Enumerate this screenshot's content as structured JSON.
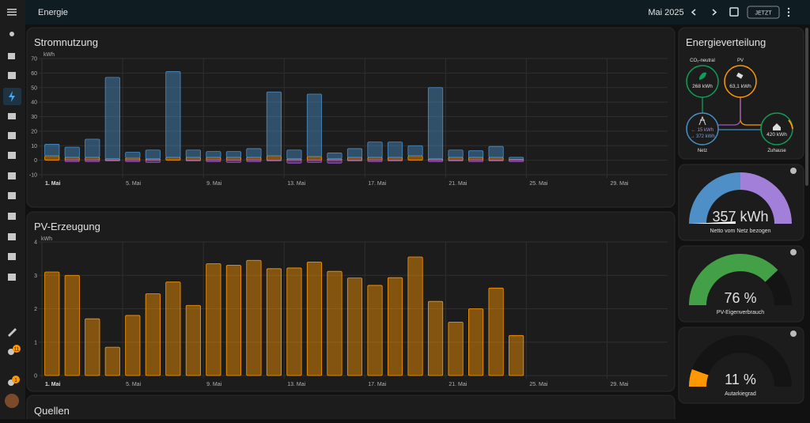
{
  "header": {
    "title": "Energie",
    "period": "Mai 2025",
    "now_button": "JETZT"
  },
  "sidebar": {
    "settings_badge": "11",
    "notifications_badge": "1"
  },
  "stromnutzung": {
    "type": "bar",
    "title": "Stromnutzung",
    "ylabel": "kWh",
    "categories": [
      "1. Mai",
      null,
      null,
      null,
      "5. Mai",
      null,
      null,
      null,
      "9. Mai",
      null,
      null,
      null,
      "13. Mai",
      null,
      null,
      null,
      "17. Mai",
      null,
      null,
      null,
      "21. Mai",
      null,
      null,
      null,
      "25. Mai",
      null,
      null,
      null,
      "29. Mai",
      null,
      null
    ],
    "series": [
      {
        "color": "#ff9800",
        "values": [
          3,
          2,
          2,
          1,
          1.5,
          1,
          2,
          2,
          2,
          2,
          2,
          3,
          1,
          2.5,
          1,
          2,
          2,
          2,
          3,
          1,
          2,
          2,
          2,
          0.5,
          null,
          null,
          null,
          null,
          null,
          null,
          null
        ]
      },
      {
        "color": "#4a8dc8",
        "values": [
          8,
          7,
          12.5,
          56,
          4,
          6,
          59,
          5,
          4,
          4,
          6,
          44,
          6,
          43,
          4,
          6,
          10.5,
          10.5,
          7,
          49,
          5,
          4.5,
          7.5,
          1.5,
          null,
          null,
          null,
          null,
          null,
          null,
          null
        ]
      },
      {
        "color": "#9b59c6",
        "values": [
          0,
          -1,
          -1,
          -0.5,
          -1,
          -1.5,
          0,
          -0.5,
          -1,
          -1.5,
          -1,
          -0.5,
          -2,
          -1.5,
          -2,
          -0.5,
          -1,
          -0.5,
          0,
          -1,
          -0.5,
          -1,
          -0.5,
          -1,
          null,
          null,
          null,
          null,
          null,
          null,
          null
        ]
      }
    ],
    "ylim": [
      -10,
      70
    ],
    "yticks": [
      -10,
      0,
      10,
      20,
      30,
      40,
      50,
      60,
      70
    ],
    "grid": true
  },
  "pv": {
    "type": "bar",
    "title": "PV-Erzeugung",
    "ylabel": "kWh",
    "categories": [
      "1. Mai",
      null,
      null,
      null,
      "5. Mai",
      null,
      null,
      null,
      "9. Mai",
      null,
      null,
      null,
      "13. Mai",
      null,
      null,
      null,
      "17. Mai",
      null,
      null,
      null,
      "21. Mai",
      null,
      null,
      null,
      "25. Mai",
      null,
      null,
      null,
      "29. Mai",
      null,
      null
    ],
    "color": "#ff9800",
    "values": [
      3.1,
      3.0,
      1.7,
      0.85,
      1.8,
      2.45,
      2.8,
      2.1,
      3.35,
      3.3,
      3.45,
      3.2,
      3.22,
      3.4,
      3.12,
      2.92,
      2.7,
      2.93,
      3.55,
      2.22,
      1.6,
      2.0,
      2.62,
      1.2,
      null,
      null,
      null,
      null,
      null,
      null,
      null
    ],
    "ylim": [
      0,
      4
    ],
    "yticks": [
      0,
      1,
      2,
      3,
      4
    ],
    "grid": true
  },
  "verteilung": {
    "title": "Energieverteilung",
    "co2": {
      "label": "CO₂-neutral",
      "value": "268 kWh"
    },
    "pv": {
      "label": "PV",
      "value": "63,1 kWh"
    },
    "netz": {
      "label": "Netz",
      "in": "← 15 kWh",
      "out": "→ 372 kWh"
    },
    "home": {
      "label": "Zuhause",
      "value": "420 kWh"
    }
  },
  "gauges": [
    {
      "label": "357 kWh",
      "name": "Netto vom Netz bezogen"
    },
    {
      "value": 76,
      "label": "76 %",
      "name": "PV-Eigenverbrauch",
      "range": [
        0,
        100
      ],
      "color": "#43a047"
    },
    {
      "value": 11,
      "label": "11 %",
      "name": "Autarkiegrad",
      "range": [
        0,
        100
      ],
      "color": "#ff9800"
    }
  ],
  "quellen": {
    "title": "Quellen"
  }
}
